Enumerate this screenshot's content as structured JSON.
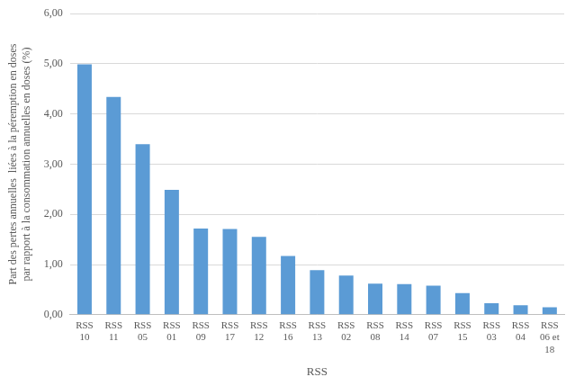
{
  "chart_data": {
    "type": "bar",
    "categories": [
      [
        "RSS",
        "10"
      ],
      [
        "RSS",
        "11"
      ],
      [
        "RSS",
        "05"
      ],
      [
        "RSS",
        "01"
      ],
      [
        "RSS",
        "09"
      ],
      [
        "RSS",
        "17"
      ],
      [
        "RSS",
        "12"
      ],
      [
        "RSS",
        "16"
      ],
      [
        "RSS",
        "13"
      ],
      [
        "RSS",
        "02"
      ],
      [
        "RSS",
        "08"
      ],
      [
        "RSS",
        "14"
      ],
      [
        "RSS",
        "07"
      ],
      [
        "RSS",
        "15"
      ],
      [
        "RSS",
        "03"
      ],
      [
        "RSS",
        "04"
      ],
      [
        "RSS",
        "06 et",
        "18"
      ]
    ],
    "values": [
      4.99,
      4.34,
      3.4,
      2.49,
      1.72,
      1.71,
      1.55,
      1.17,
      0.89,
      0.78,
      0.62,
      0.61,
      0.58,
      0.43,
      0.23,
      0.19,
      0.15
    ],
    "color": "#5b9bd5",
    "xlabel": "RSS",
    "ylabel": [
      "Part des pertes annuelles  liées à la péremption en doses",
      "par rapport à la consommation annuelles en doses (%)"
    ],
    "ylim": [
      0,
      6
    ],
    "yticks": [
      {
        "value": 0,
        "label": "0,00"
      },
      {
        "value": 1,
        "label": "1,00"
      },
      {
        "value": 2,
        "label": "2,00"
      },
      {
        "value": 3,
        "label": "3,00"
      },
      {
        "value": 4,
        "label": "4,00"
      },
      {
        "value": 5,
        "label": "5,00"
      },
      {
        "value": 6,
        "label": "6,00"
      }
    ],
    "grid": true
  }
}
